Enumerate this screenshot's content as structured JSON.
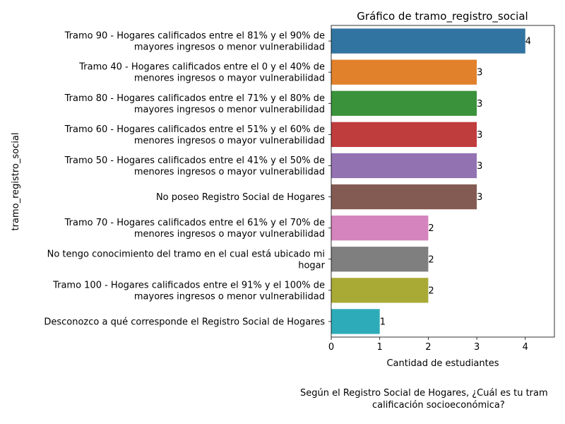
{
  "chart_data": {
    "type": "bar",
    "orientation": "horizontal",
    "title": "Gráfico de tramo_registro_social",
    "xlabel": "Cantidad de estudiantes",
    "ylabel": "tramo_registro_social",
    "xlim": [
      0,
      4.6
    ],
    "xticks": [
      0,
      1,
      2,
      3,
      4
    ],
    "grid": false,
    "categories": [
      [
        "Tramo 90 - Hogares calificados entre el 81% y el 90% de",
        "mayores ingresos o menor vulnerabilidad"
      ],
      [
        "Tramo 40 - Hogares calificados entre el 0 y el 40% de",
        "menores ingresos o mayor vulnerabilidad"
      ],
      [
        "Tramo 80 - Hogares calificados entre el 71% y el 80% de",
        "mayores ingresos o menor vulnerabilidad"
      ],
      [
        "Tramo 60 - Hogares calificados entre el 51% y el 60% de",
        "menores ingresos o mayor vulnerabilidad"
      ],
      [
        "Tramo 50 - Hogares calificados entre el 41% y el 50% de",
        "menores ingresos o mayor vulnerabilidad"
      ],
      [
        "No poseo Registro Social de Hogares"
      ],
      [
        "Tramo 70 - Hogares calificados entre el 61% y el 70% de",
        "menores ingresos o mayor vulnerabilidad"
      ],
      [
        "No tengo conocimiento del tramo en el cual está ubicado mi",
        "hogar"
      ],
      [
        "Tramo 100 - Hogares calificados entre el 91% y el 100% de",
        "mayores ingresos o menor vulnerabilidad"
      ],
      [
        "Desconozco a qué corresponde el Registro Social de Hogares"
      ]
    ],
    "values": [
      4,
      3,
      3,
      3,
      3,
      3,
      2,
      2,
      2,
      1
    ],
    "colors": [
      "#3274a1",
      "#e1812c",
      "#3a923a",
      "#c03d3e",
      "#9372b2",
      "#845b53",
      "#d684bd",
      "#7f7f7f",
      "#a9aa35",
      "#2eabb8"
    ]
  },
  "footer_note": {
    "line1": "Según el Registro Social de Hogares, ¿Cuál es tu tram",
    "line2": "calificación socioeconómica?"
  }
}
